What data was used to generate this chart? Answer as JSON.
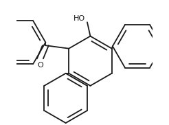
{
  "background": "#ffffff",
  "line_color": "#1a1a1a",
  "line_width": 1.3,
  "text_color": "#1a1a1a",
  "font_size": 8.0
}
